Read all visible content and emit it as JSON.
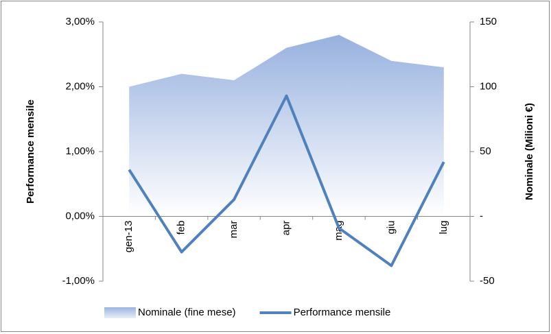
{
  "chart_data": {
    "type": "combo",
    "y_label": "Performance mensile",
    "y2_label": "Nominale (Milioni €)",
    "categories": [
      "gen-13",
      "feb",
      "mar",
      "apr",
      "mag",
      "giu",
      "lug"
    ],
    "series": [
      {
        "name": "Nominale (fine mese)",
        "type": "area",
        "axis": "y2",
        "color": "#9bb4e0",
        "values": [
          100,
          110,
          105,
          130,
          140,
          120,
          115
        ]
      },
      {
        "name": "Performance mensile",
        "type": "line",
        "axis": "y",
        "color": "#4f81bd",
        "values": [
          0.72,
          -0.55,
          0.26,
          1.86,
          -0.18,
          -0.76,
          0.84
        ]
      }
    ],
    "ylim": [
      -1,
      3
    ],
    "yticks": [
      {
        "value": -1,
        "label": "-1,00%"
      },
      {
        "value": 0,
        "label": "0,00%"
      },
      {
        "value": 1,
        "label": "1,00%"
      },
      {
        "value": 2,
        "label": "2,00%"
      },
      {
        "value": 3,
        "label": "3,00%"
      }
    ],
    "y2lim": [
      -50,
      150
    ],
    "y2ticks": [
      -50,
      {
        "value": 0,
        "label": "-"
      },
      50,
      100,
      150
    ],
    "grid": false,
    "legend": "bottom"
  }
}
